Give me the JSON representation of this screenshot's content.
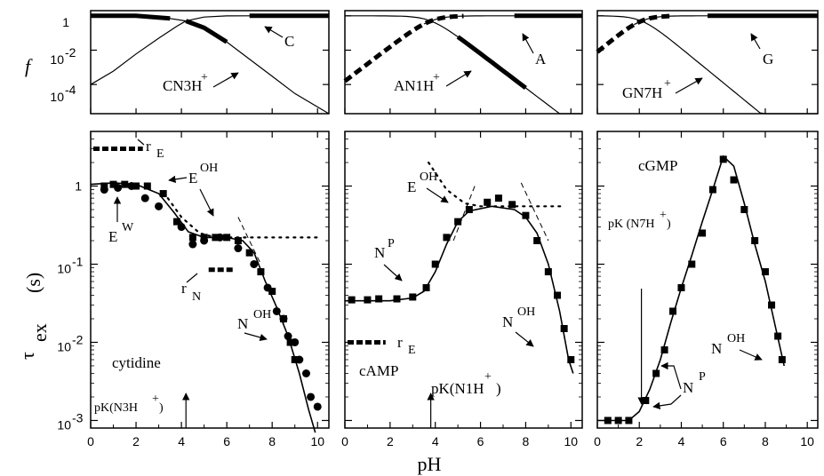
{
  "figure": {
    "f_label": "f",
    "tau_label": "τ",
    "tau_sub": "ex",
    "tau_unit": "(s)",
    "xlabel": "pH"
  },
  "chart_data": [
    {
      "type": "line",
      "panel": "cytidine",
      "xlim": [
        0,
        10.5
      ],
      "ylim": [
        0.0008,
        5
      ],
      "yscale": "log",
      "x_ticks": [
        "0",
        "2",
        "4",
        "6",
        "8",
        "10"
      ],
      "y_ticks": [
        {
          "v": 0.001,
          "label": "10-3"
        },
        {
          "v": 0.01,
          "label": "10-2"
        },
        {
          "v": 0.1,
          "label": "10-1"
        },
        {
          "v": 1,
          "label": "1"
        }
      ],
      "f_panel": {
        "ylim": [
          2e-06,
          2
        ],
        "curves": [
          {
            "name": "C",
            "points": [
              [
                0,
                1
              ],
              [
                2,
                1
              ],
              [
                3.5,
                0.7
              ],
              [
                4.2,
                0.5
              ],
              [
                5,
                0.2
              ],
              [
                6,
                0.03
              ],
              [
                7,
                0.003
              ],
              [
                8,
                0.0003
              ],
              [
                9,
                3e-05
              ],
              [
                10.5,
                2e-06
              ]
            ]
          },
          {
            "name": "CN3H+",
            "points": [
              [
                0,
                0.0001
              ],
              [
                1,
                0.0006
              ],
              [
                2,
                0.006
              ],
              [
                3,
                0.05
              ],
              [
                3.8,
                0.25
              ],
              [
                4.2,
                0.5
              ],
              [
                5,
                0.85
              ],
              [
                6,
                0.99
              ],
              [
                7,
                1
              ],
              [
                10.5,
                1
              ]
            ]
          }
        ],
        "thick": [
          {
            "x": [
              0,
              4
            ],
            "curve": "C"
          },
          {
            "x": [
              4,
              6.3
            ],
            "curve": "C"
          },
          {
            "x": [
              7.5,
              10.5
            ],
            "curve": "CN3H+"
          }
        ],
        "labels": [
          "C",
          "CN3H+"
        ]
      },
      "squares": [
        [
          0.6,
          1.0
        ],
        [
          1.0,
          1.05
        ],
        [
          1.5,
          1.05
        ],
        [
          2.0,
          1.0
        ],
        [
          2.5,
          1.0
        ],
        [
          3.2,
          0.8
        ],
        [
          3.8,
          0.35
        ],
        [
          4.5,
          0.22
        ],
        [
          5.0,
          0.22
        ],
        [
          5.5,
          0.22
        ],
        [
          6.0,
          0.22
        ],
        [
          6.5,
          0.2
        ],
        [
          7.0,
          0.14
        ],
        [
          7.5,
          0.08
        ],
        [
          8.0,
          0.045
        ],
        [
          8.5,
          0.02
        ],
        [
          8.8,
          0.01
        ],
        [
          9.0,
          0.006
        ]
      ],
      "circles": [
        [
          0.6,
          0.9
        ],
        [
          1.2,
          0.95
        ],
        [
          1.8,
          1.0
        ],
        [
          2.4,
          0.7
        ],
        [
          3.0,
          0.55
        ],
        [
          4.0,
          0.3
        ],
        [
          4.5,
          0.18
        ],
        [
          5.0,
          0.2
        ],
        [
          5.7,
          0.22
        ],
        [
          6.5,
          0.16
        ],
        [
          7.2,
          0.1
        ],
        [
          7.8,
          0.05
        ],
        [
          8.2,
          0.025
        ],
        [
          8.5,
          0.02
        ],
        [
          8.7,
          0.012
        ],
        [
          9.0,
          0.01
        ],
        [
          9.2,
          0.006
        ],
        [
          9.5,
          0.004
        ],
        [
          9.7,
          0.002
        ],
        [
          10.0,
          0.0015
        ]
      ],
      "solid": [
        [
          0,
          1.05
        ],
        [
          1,
          1.1
        ],
        [
          2,
          1.05
        ],
        [
          3,
          0.8
        ],
        [
          3.7,
          0.45
        ],
        [
          4.3,
          0.26
        ],
        [
          5,
          0.22
        ],
        [
          6,
          0.22
        ],
        [
          6.7,
          0.2
        ],
        [
          7.2,
          0.14
        ],
        [
          7.7,
          0.06
        ],
        [
          8.2,
          0.028
        ],
        [
          8.7,
          0.012
        ],
        [
          9.2,
          0.004
        ],
        [
          9.6,
          0.0014
        ],
        [
          9.9,
          0.0007
        ]
      ],
      "dotted_EOH": [
        [
          3.4,
          0.7
        ],
        [
          4.0,
          0.4
        ],
        [
          4.8,
          0.25
        ],
        [
          5.5,
          0.22
        ],
        [
          7,
          0.22
        ],
        [
          10,
          0.22
        ]
      ],
      "dashed_NOH": [
        [
          6.5,
          0.4
        ],
        [
          7.5,
          0.1
        ]
      ],
      "rE": {
        "x": [
          0,
          2.3
        ],
        "y": 3.0,
        "label": "rE"
      },
      "rN": {
        "x": [
          5.2,
          6.3
        ],
        "y": 0.085,
        "label": "rN"
      },
      "annotations": {
        "rE": "r",
        "rE_sub": "E",
        "EOH": "E",
        "EOH_sup": "OH",
        "EW": "E",
        "EW_sup": "W",
        "rN": "r",
        "rN_sub": "N",
        "NOH": "N",
        "NOH_sup": "OH",
        "name": "cytidine",
        "pK": "pK(N3H",
        "pK_sup": "+",
        "pK_end": ")"
      },
      "pK_x": 4.2
    },
    {
      "type": "line",
      "panel": "cAMP",
      "xlim": [
        0,
        10.5
      ],
      "ylim": [
        0.0008,
        5
      ],
      "yscale": "log",
      "x_ticks": [
        "0",
        "2",
        "4",
        "6",
        "8",
        "10"
      ],
      "f_panel": {
        "labels": [
          "A",
          "AN1H+"
        ]
      },
      "squares": [
        [
          0.3,
          0.035
        ],
        [
          1,
          0.035
        ],
        [
          1.5,
          0.036
        ],
        [
          2.3,
          0.036
        ],
        [
          3.0,
          0.038
        ],
        [
          3.6,
          0.05
        ],
        [
          4.0,
          0.1
        ],
        [
          4.5,
          0.22
        ],
        [
          5.0,
          0.35
        ],
        [
          5.5,
          0.5
        ],
        [
          6.3,
          0.62
        ],
        [
          6.8,
          0.7
        ],
        [
          7.4,
          0.58
        ],
        [
          8.0,
          0.42
        ],
        [
          8.5,
          0.2
        ],
        [
          9.0,
          0.08
        ],
        [
          9.4,
          0.04
        ],
        [
          9.7,
          0.015
        ],
        [
          10.0,
          0.006
        ]
      ],
      "solid": [
        [
          0,
          0.034
        ],
        [
          2,
          0.034
        ],
        [
          3,
          0.037
        ],
        [
          3.5,
          0.045
        ],
        [
          4,
          0.08
        ],
        [
          4.5,
          0.18
        ],
        [
          5,
          0.35
        ],
        [
          5.5,
          0.48
        ],
        [
          6.5,
          0.55
        ],
        [
          7.5,
          0.5
        ],
        [
          8,
          0.4
        ],
        [
          8.5,
          0.25
        ],
        [
          9,
          0.1
        ],
        [
          9.5,
          0.025
        ],
        [
          9.9,
          0.006
        ],
        [
          10.1,
          0.004
        ]
      ],
      "dotted_EOH": [
        [
          3.7,
          2
        ],
        [
          4.5,
          0.9
        ],
        [
          5.3,
          0.6
        ],
        [
          6,
          0.55
        ],
        [
          8,
          0.55
        ],
        [
          9.7,
          0.55
        ]
      ],
      "dashed": [
        [
          4.8,
          0.2
        ],
        [
          5.8,
          1.1
        ]
      ],
      "dashed2": [
        [
          7.8,
          1.1
        ],
        [
          9,
          0.2
        ]
      ],
      "rE": {
        "x": [
          0,
          1.8
        ],
        "y": 0.01
      },
      "annotations": {
        "EOH": "E",
        "EOH_sup": "OH",
        "NP": "N",
        "NP_sup": "P",
        "NOH": "N",
        "NOH_sup": "OH",
        "rE": "r",
        "rE_sub": "E",
        "name": "cAMP",
        "pK": "pK(N1H",
        "pK_sup": "+",
        "pK_end": ")"
      },
      "pK_x": 3.8
    },
    {
      "type": "line",
      "panel": "cGMP",
      "xlim": [
        0,
        10.5
      ],
      "ylim": [
        0.0008,
        5
      ],
      "yscale": "log",
      "x_ticks": [
        "0",
        "2",
        "4",
        "6",
        "8",
        "10"
      ],
      "f_panel": {
        "labels": [
          "G",
          "GN7H+"
        ]
      },
      "squares": [
        [
          0.5,
          0.001
        ],
        [
          1.0,
          0.001
        ],
        [
          1.5,
          0.001
        ],
        [
          2.3,
          0.0018
        ],
        [
          2.8,
          0.004
        ],
        [
          3.2,
          0.008
        ],
        [
          3.6,
          0.025
        ],
        [
          4.0,
          0.05
        ],
        [
          4.5,
          0.1
        ],
        [
          5.0,
          0.25
        ],
        [
          5.5,
          0.9
        ],
        [
          6.0,
          2.2
        ],
        [
          6.5,
          1.2
        ],
        [
          7.0,
          0.5
        ],
        [
          7.5,
          0.2
        ],
        [
          8.0,
          0.08
        ],
        [
          8.3,
          0.03
        ],
        [
          8.6,
          0.012
        ],
        [
          8.8,
          0.006
        ]
      ],
      "solid": [
        [
          0,
          0.001
        ],
        [
          1.5,
          0.001
        ],
        [
          2.0,
          0.0013
        ],
        [
          2.5,
          0.0025
        ],
        [
          3,
          0.006
        ],
        [
          3.5,
          0.018
        ],
        [
          4,
          0.05
        ],
        [
          4.5,
          0.13
        ],
        [
          5,
          0.35
        ],
        [
          5.5,
          0.9
        ],
        [
          6,
          2.4
        ],
        [
          6.5,
          1.8
        ],
        [
          7,
          0.6
        ],
        [
          7.5,
          0.18
        ],
        [
          8,
          0.06
        ],
        [
          8.5,
          0.015
        ],
        [
          8.9,
          0.005
        ]
      ],
      "annotations": {
        "name": "cGMP",
        "pK": "pK (N7H",
        "pK_sup": "+",
        "pK_end": ")",
        "NOH": "N",
        "NOH_sup": "OH",
        "NP": "N",
        "NP_sup": "P"
      },
      "pK_x": 2.1
    }
  ]
}
